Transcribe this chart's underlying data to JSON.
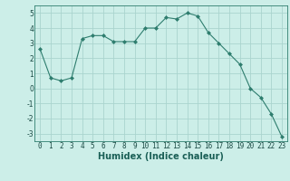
{
  "x": [
    0,
    1,
    2,
    3,
    4,
    5,
    6,
    7,
    8,
    9,
    10,
    11,
    12,
    13,
    14,
    15,
    16,
    17,
    18,
    19,
    20,
    21,
    22,
    23
  ],
  "y": [
    2.6,
    0.7,
    0.5,
    0.7,
    3.3,
    3.5,
    3.5,
    3.1,
    3.1,
    3.1,
    4.0,
    4.0,
    4.7,
    4.6,
    5.0,
    4.8,
    3.7,
    3.0,
    2.3,
    1.6,
    0.0,
    -0.6,
    -1.7,
    -3.2
  ],
  "line_color": "#2e7d6e",
  "marker": "D",
  "marker_size": 2,
  "bg_color": "#cceee8",
  "grid_color": "#aad4ce",
  "xlabel": "Humidex (Indice chaleur)",
  "xlim": [
    -0.5,
    23.5
  ],
  "ylim": [
    -3.5,
    5.5
  ],
  "yticks": [
    -3,
    -2,
    -1,
    0,
    1,
    2,
    3,
    4,
    5
  ],
  "xticks": [
    0,
    1,
    2,
    3,
    4,
    5,
    6,
    7,
    8,
    9,
    10,
    11,
    12,
    13,
    14,
    15,
    16,
    17,
    18,
    19,
    20,
    21,
    22,
    23
  ],
  "xlabel_fontsize": 7,
  "tick_fontsize": 5.5
}
